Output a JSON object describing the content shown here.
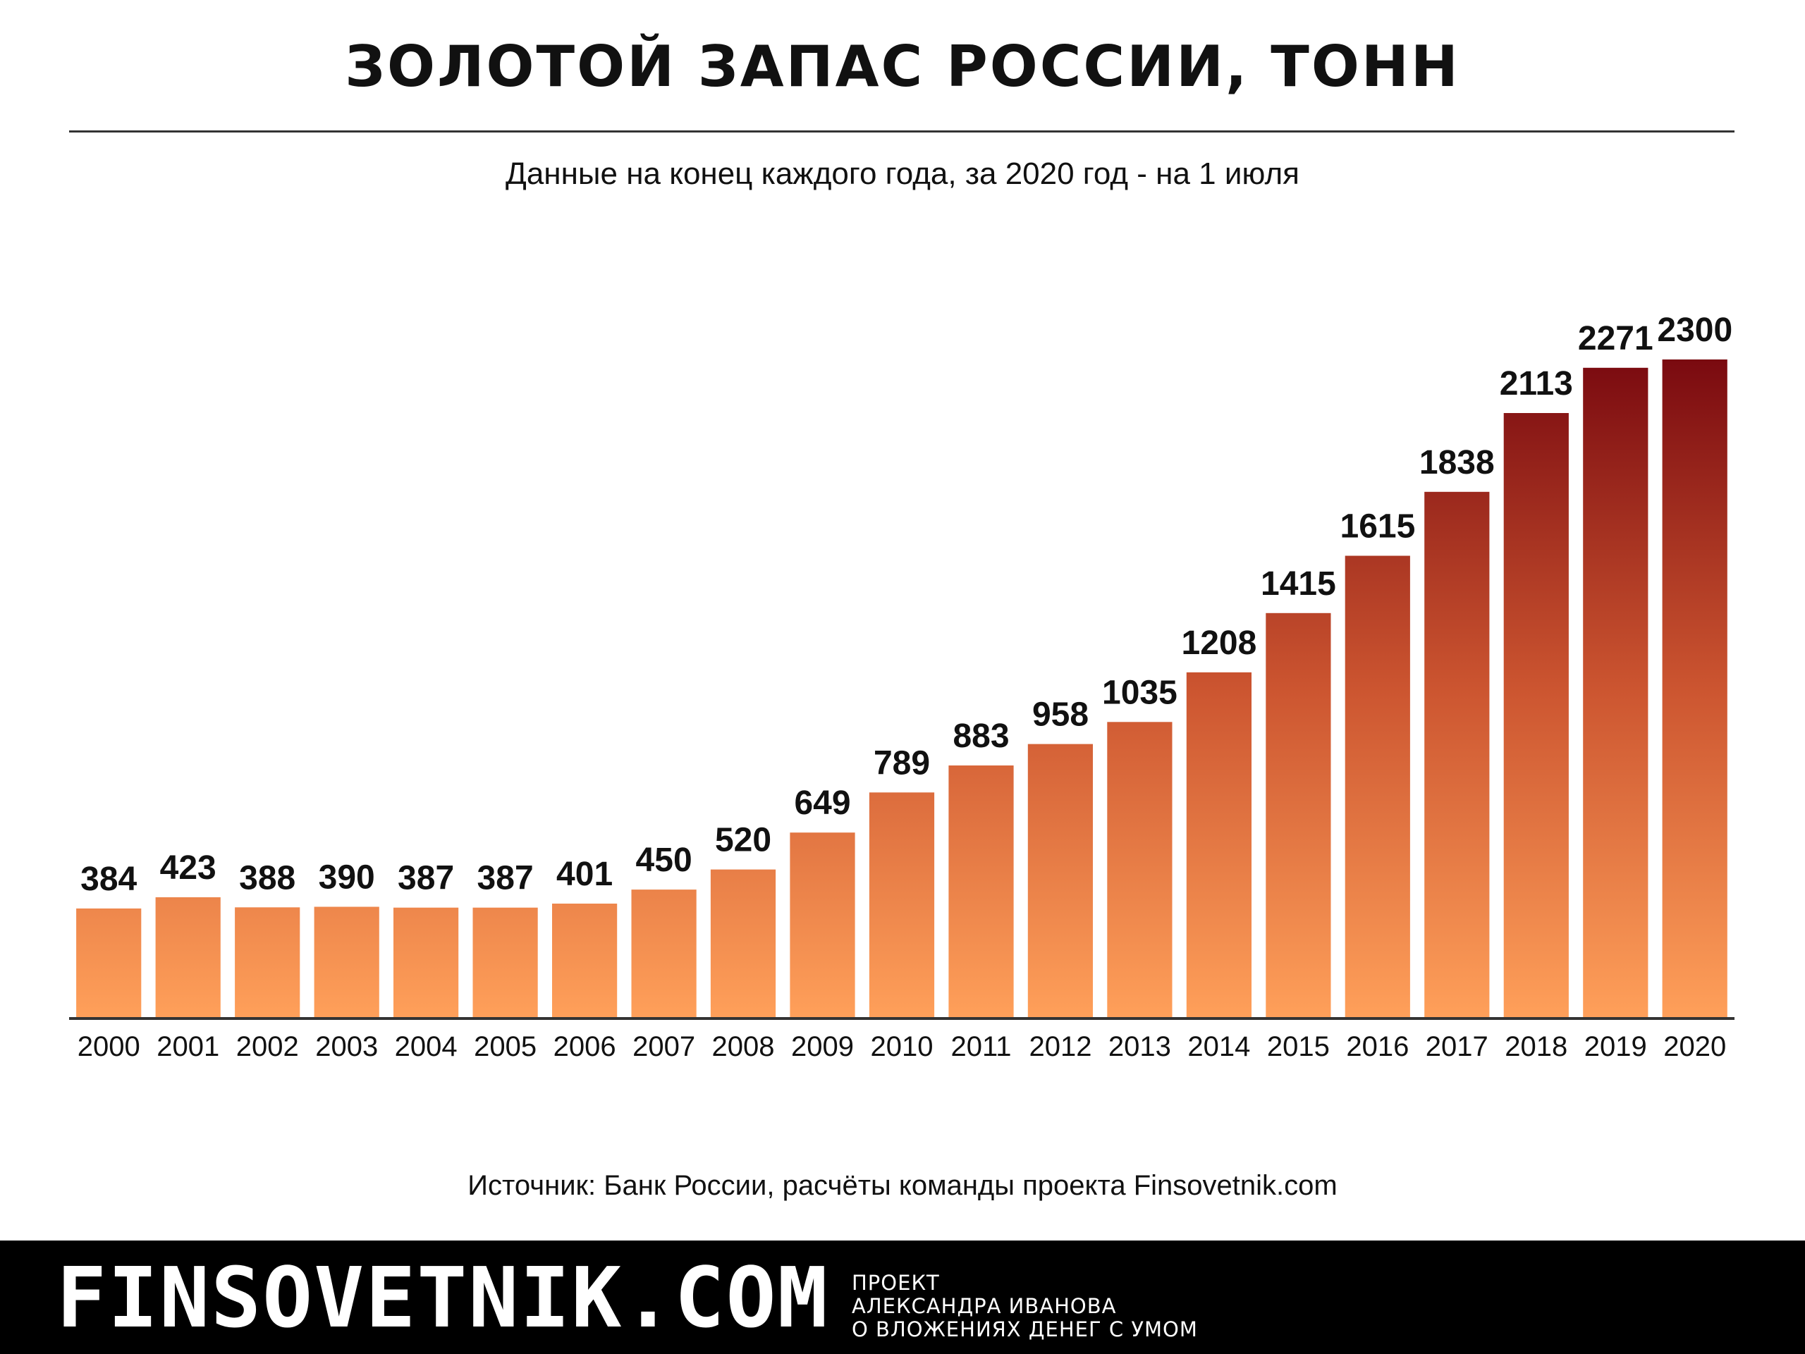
{
  "header": {
    "title": "ЗОЛОТОЙ ЗАПАС РОССИИ, ТОНН",
    "subtitle": "Данные на конец каждого года, за 2020 год - на 1 июля"
  },
  "chart_data": {
    "type": "bar",
    "title": "ЗОЛОТОЙ ЗАПАС РОССИИ, ТОНН",
    "subtitle": "Данные на конец каждого года, за 2020 год - на 1 июля",
    "categories": [
      "2000",
      "2001",
      "2002",
      "2003",
      "2004",
      "2005",
      "2006",
      "2007",
      "2008",
      "2009",
      "2010",
      "2011",
      "2012",
      "2013",
      "2014",
      "2015",
      "2016",
      "2017",
      "2018",
      "2019",
      "2020"
    ],
    "values": [
      384,
      423,
      388,
      390,
      387,
      387,
      401,
      450,
      520,
      649,
      789,
      883,
      958,
      1035,
      1208,
      1415,
      1615,
      1838,
      2113,
      2271,
      2300
    ],
    "xlabel": "",
    "ylabel": "",
    "ylim": [
      0,
      2300
    ],
    "grid": false,
    "data_labels": true,
    "colors": {
      "low": "#FFA05A",
      "high": "#7A0A10",
      "axis": "#333333"
    }
  },
  "source": "Источник: Банк России, расчёты команды проекта Finsovetnik.com",
  "footer": {
    "brand": "FINSOVETNIK.COM",
    "tagline": [
      "ПРОЕКТ",
      "АЛЕКСАНДРА ИВАНОВА",
      "О ВЛОЖЕНИЯХ ДЕНЕГ С УМОМ"
    ]
  }
}
